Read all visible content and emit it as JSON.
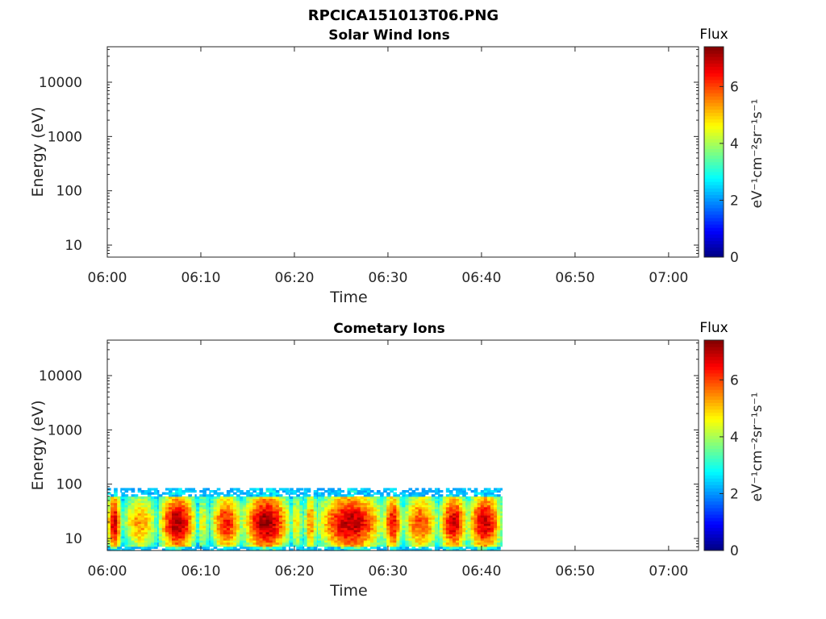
{
  "figure": {
    "title": "RPCICA151013T06.PNG"
  },
  "colorbar": {
    "label": "Flux",
    "unit": "eV⁻¹cm⁻²sr⁻¹s⁻¹",
    "range": [
      0,
      7.4
    ],
    "ticks": [
      0,
      2,
      4,
      6
    ],
    "colormap": "jet"
  },
  "chart_data": [
    {
      "type": "heatmap",
      "title": "Solar Wind Ions",
      "xlabel": "Time",
      "ylabel": "Energy (eV)",
      "x_ticks": [
        "06:00",
        "06:10",
        "06:20",
        "06:30",
        "06:40",
        "06:50",
        "07:00"
      ],
      "x_range_minutes": [
        0,
        63.2
      ],
      "y_scale": "log",
      "y_ticks": [
        10,
        100,
        1000,
        10000
      ],
      "y_range": [
        6,
        45000
      ],
      "data_present": false,
      "flux_segments": []
    },
    {
      "type": "heatmap",
      "title": "Cometary Ions",
      "xlabel": "Time",
      "ylabel": "Energy (eV)",
      "x_ticks": [
        "06:00",
        "06:10",
        "06:20",
        "06:30",
        "06:40",
        "06:50",
        "07:00"
      ],
      "x_range_minutes": [
        0,
        63.2
      ],
      "y_scale": "log",
      "y_ticks": [
        10,
        100,
        1000,
        10000
      ],
      "y_range": [
        6,
        45000
      ],
      "data_present": true,
      "data_time_range_minutes": [
        0,
        42.2
      ],
      "data_energy_range": [
        6,
        85
      ],
      "flux_segments": [
        {
          "start": 0.0,
          "end": 1.5,
          "peak": 6.9
        },
        {
          "start": 1.5,
          "end": 5.5,
          "peak": 5.4
        },
        {
          "start": 5.5,
          "end": 9.5,
          "peak": 7.1
        },
        {
          "start": 9.5,
          "end": 11.0,
          "peak": 4.6
        },
        {
          "start": 11.0,
          "end": 14.5,
          "peak": 6.3
        },
        {
          "start": 14.5,
          "end": 19.5,
          "peak": 7.2
        },
        {
          "start": 19.5,
          "end": 21.0,
          "peak": 4.8
        },
        {
          "start": 21.0,
          "end": 22.5,
          "peak": 5.6
        },
        {
          "start": 22.5,
          "end": 29.5,
          "peak": 7.0
        },
        {
          "start": 29.5,
          "end": 31.5,
          "peak": 6.6
        },
        {
          "start": 31.5,
          "end": 35.5,
          "peak": 6.0
        },
        {
          "start": 35.5,
          "end": 38.5,
          "peak": 6.8
        },
        {
          "start": 38.5,
          "end": 42.2,
          "peak": 6.9
        }
      ]
    }
  ]
}
